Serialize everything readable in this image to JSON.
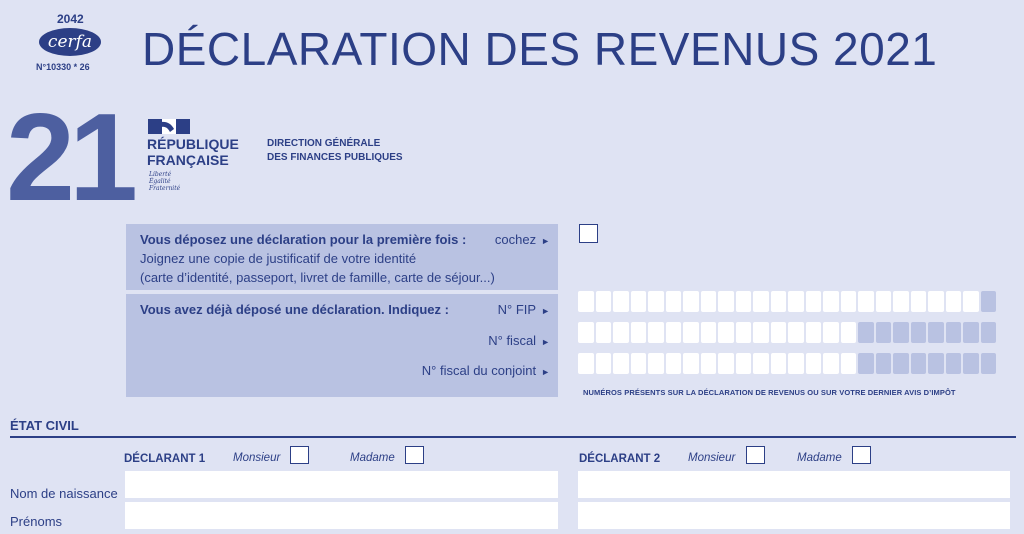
{
  "header": {
    "cerfa_number": "2042",
    "cerfa_logo": "cerfa",
    "cerfa_code": "N°10330 * 26",
    "title": "DÉCLARATION DES REVENUS 2021",
    "big_year": "21"
  },
  "republique": {
    "line1": "RÉPUBLIQUE",
    "line2": "FRANÇAISE",
    "motto": [
      "Liberté",
      "Égalité",
      "Fraternité"
    ],
    "dgfip_line1": "DIRECTION GÉNÉRALE",
    "dgfip_line2": "DES FINANCES PUBLIQUES"
  },
  "first_time": {
    "question": "Vous déposez une déclaration pour la première fois :",
    "action": "cochez",
    "line2": "Joignez une copie de justificatif de votre identité",
    "line3": "(carte d’identité, passeport, livret de famille, carte de séjour...)"
  },
  "already": {
    "question": "Vous avez déjà déposé une déclaration. Indiquez :",
    "fip_label": "N° FIP",
    "fiscal_label": "N° fiscal",
    "spouse_label": "N° fiscal du conjoint",
    "note": "NUMÉROS PRÉSENTS SUR LA DÉCLARATION DE REVENUS OU SUR VOTRE DERNIER AVIS D’IMPÔT"
  },
  "etat_civil": {
    "section_title": "ÉTAT CIVIL",
    "declarant1": "DÉCLARANT 1",
    "declarant2": "DÉCLARANT 2",
    "monsieur": "Monsieur",
    "madame": "Madame",
    "row_birth_name": "Nom de naissance",
    "row_first_names": "Prénoms"
  },
  "colors": {
    "ink": "#2c3f86",
    "panel": "#b9c2e2",
    "page": "#dfe3f3"
  }
}
